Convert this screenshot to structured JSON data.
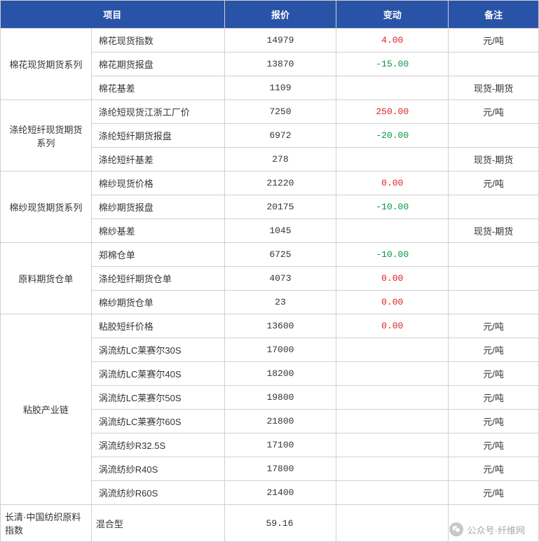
{
  "table": {
    "headers": [
      "项目",
      "报价",
      "变动",
      "备注"
    ],
    "header_bg": "#2953a6",
    "header_fg": "#ffffff",
    "border_color": "#d0d0d0",
    "pos_color": "#e02020",
    "neg_color": "#009944",
    "text_color": "#333333",
    "font_size": 13,
    "groups": [
      {
        "category": "棉花现货期货系列",
        "rows": [
          {
            "item": "棉花现货指数",
            "price": "14979",
            "change": "4.00",
            "change_sign": "pos",
            "remark": "元/吨"
          },
          {
            "item": "棉花期货报盘",
            "price": "13870",
            "change": "-15.00",
            "change_sign": "neg",
            "remark": ""
          },
          {
            "item": "棉花基差",
            "price": "1109",
            "change": "",
            "change_sign": "",
            "remark": "现货-期货"
          }
        ]
      },
      {
        "category": "涤纶短纤现货期货系列",
        "rows": [
          {
            "item": "涤纶短现货江浙工厂价",
            "price": "7250",
            "change": "250.00",
            "change_sign": "pos",
            "remark": "元/吨"
          },
          {
            "item": "涤纶短纤期货报盘",
            "price": "6972",
            "change": "-20.00",
            "change_sign": "neg",
            "remark": ""
          },
          {
            "item": "涤纶短纤基差",
            "price": "278",
            "change": "",
            "change_sign": "",
            "remark": "现货-期货"
          }
        ]
      },
      {
        "category": "棉纱现货期货系列",
        "rows": [
          {
            "item": "棉纱现货价格",
            "price": "21220",
            "change": "0.00",
            "change_sign": "pos",
            "remark": "元/吨"
          },
          {
            "item": "棉纱期货报盘",
            "price": "20175",
            "change": "-10.00",
            "change_sign": "neg",
            "remark": ""
          },
          {
            "item": "棉纱基差",
            "price": "1045",
            "change": "",
            "change_sign": "",
            "remark": "现货-期货"
          }
        ]
      },
      {
        "category": "原料期货仓单",
        "rows": [
          {
            "item": "郑棉仓单",
            "price": "6725",
            "change": "-10.00",
            "change_sign": "neg",
            "remark": ""
          },
          {
            "item": "涤纶短纤期货仓单",
            "price": "4073",
            "change": "0.00",
            "change_sign": "pos",
            "remark": ""
          },
          {
            "item": "棉纱期货仓单",
            "price": "23",
            "change": "0.00",
            "change_sign": "pos",
            "remark": ""
          }
        ]
      },
      {
        "category": "粘胶产业链",
        "rows": [
          {
            "item": "粘胶短纤价格",
            "price": "13600",
            "change": "0.00",
            "change_sign": "pos",
            "remark": "元/吨"
          },
          {
            "item": "涡流纺LC莱赛尔30S",
            "price": "17000",
            "change": "",
            "change_sign": "",
            "remark": "元/吨"
          },
          {
            "item": "涡流纺LC莱赛尔40S",
            "price": "18200",
            "change": "",
            "change_sign": "",
            "remark": "元/吨"
          },
          {
            "item": "涡流纺LC莱赛尔50S",
            "price": "19800",
            "change": "",
            "change_sign": "",
            "remark": "元/吨"
          },
          {
            "item": "涡流纺LC莱赛尔60S",
            "price": "21800",
            "change": "",
            "change_sign": "",
            "remark": "元/吨"
          },
          {
            "item": "涡流纺纱R32.5S",
            "price": "17100",
            "change": "",
            "change_sign": "",
            "remark": "元/吨"
          },
          {
            "item": "涡流纺纱R40S",
            "price": "17800",
            "change": "",
            "change_sign": "",
            "remark": "元/吨"
          },
          {
            "item": "涡流纺纱R60S",
            "price": "21400",
            "change": "",
            "change_sign": "",
            "remark": "元/吨"
          }
        ]
      }
    ],
    "footer": {
      "label": "长清·中国纺织原料指数",
      "type": "混合型",
      "value": "59.16"
    }
  },
  "watermark": {
    "text": "公众号·纤维网",
    "icon": "wechat-icon",
    "text_color": "#a9a9a9"
  }
}
